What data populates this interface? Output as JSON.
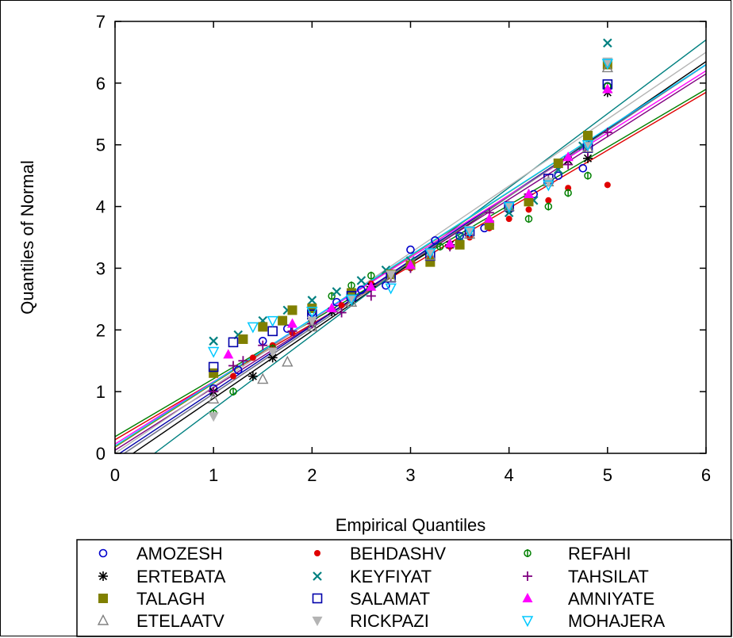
{
  "chart_data": {
    "type": "scatter",
    "xlabel": "Empirical Quantiles",
    "ylabel": "Quantiles of Normal",
    "xlim": [
      0,
      6
    ],
    "ylim": [
      0,
      7
    ],
    "xticks": [
      "0",
      "1",
      "2",
      "3",
      "4",
      "5",
      "6"
    ],
    "yticks": [
      "0",
      "1",
      "2",
      "3",
      "4",
      "5",
      "6",
      "7"
    ],
    "legend_position": "bottom",
    "series": [
      {
        "name": "AMOZESH",
        "color": "#0000cc",
        "marker": "circle-open",
        "points": [
          [
            1.0,
            1.05
          ],
          [
            1.25,
            1.35
          ],
          [
            1.5,
            1.82
          ],
          [
            1.75,
            2.02
          ],
          [
            2.0,
            2.28
          ],
          [
            2.25,
            2.45
          ],
          [
            2.5,
            2.65
          ],
          [
            2.75,
            2.72
          ],
          [
            3.0,
            3.3
          ],
          [
            3.25,
            3.45
          ],
          [
            3.5,
            3.52
          ],
          [
            3.75,
            3.65
          ],
          [
            4.0,
            3.95
          ],
          [
            4.25,
            4.2
          ],
          [
            4.5,
            4.5
          ],
          [
            4.75,
            4.62
          ],
          [
            5.0,
            5.95
          ]
        ],
        "fit": [
          [
            0,
            -0.1
          ],
          [
            6,
            6.3
          ]
        ]
      },
      {
        "name": "BEHDASHV",
        "color": "#e00000",
        "marker": "dot",
        "points": [
          [
            1.2,
            1.25
          ],
          [
            1.4,
            1.55
          ],
          [
            1.6,
            1.75
          ],
          [
            1.8,
            1.95
          ],
          [
            2.0,
            2.15
          ],
          [
            2.3,
            2.4
          ],
          [
            2.6,
            2.75
          ],
          [
            3.0,
            3.0
          ],
          [
            3.2,
            3.2
          ],
          [
            3.4,
            3.35
          ],
          [
            3.6,
            3.5
          ],
          [
            3.8,
            3.65
          ],
          [
            4.0,
            3.8
          ],
          [
            4.2,
            3.95
          ],
          [
            4.4,
            4.1
          ],
          [
            4.6,
            4.3
          ],
          [
            5.0,
            4.35
          ]
        ],
        "fit": [
          [
            0,
            0.22
          ],
          [
            6,
            5.85
          ]
        ]
      },
      {
        "name": "REFAHI",
        "color": "#008000",
        "marker": "circle-bar",
        "points": [
          [
            1.0,
            0.65
          ],
          [
            1.2,
            1.0
          ],
          [
            1.6,
            1.7
          ],
          [
            2.2,
            2.55
          ],
          [
            2.4,
            2.72
          ],
          [
            2.6,
            2.88
          ],
          [
            3.0,
            3.05
          ],
          [
            3.3,
            3.35
          ],
          [
            3.6,
            3.62
          ],
          [
            4.0,
            3.95
          ],
          [
            4.2,
            3.8
          ],
          [
            4.4,
            4.0
          ],
          [
            4.6,
            4.22
          ],
          [
            4.8,
            4.5
          ],
          [
            5.0,
            5.95
          ]
        ],
        "fit": [
          [
            0,
            0.27
          ],
          [
            6,
            5.9
          ]
        ]
      },
      {
        "name": "ERTEBATA",
        "color": "#000000",
        "marker": "asterisk",
        "points": [
          [
            1.0,
            1.0
          ],
          [
            1.4,
            1.25
          ],
          [
            1.6,
            1.55
          ],
          [
            2.0,
            2.1
          ],
          [
            2.2,
            2.3
          ],
          [
            2.6,
            2.7
          ],
          [
            3.0,
            3.05
          ],
          [
            3.4,
            3.38
          ],
          [
            3.8,
            3.7
          ],
          [
            4.2,
            4.15
          ],
          [
            4.6,
            4.75
          ],
          [
            4.8,
            4.78
          ],
          [
            5.0,
            5.85
          ]
        ],
        "fit": [
          [
            0,
            -0.2
          ],
          [
            6,
            6.35
          ]
        ]
      },
      {
        "name": "KEYFIYAT",
        "color": "#008080",
        "marker": "cross",
        "points": [
          [
            1.0,
            1.82
          ],
          [
            1.25,
            1.92
          ],
          [
            1.5,
            2.15
          ],
          [
            1.75,
            2.32
          ],
          [
            2.0,
            2.48
          ],
          [
            2.25,
            2.62
          ],
          [
            2.5,
            2.8
          ],
          [
            2.75,
            2.97
          ],
          [
            3.0,
            3.12
          ],
          [
            3.5,
            3.5
          ],
          [
            4.0,
            3.9
          ],
          [
            4.25,
            4.1
          ],
          [
            4.5,
            4.6
          ],
          [
            4.75,
            4.98
          ],
          [
            5.0,
            6.65
          ]
        ],
        "fit": [
          [
            0.4,
            0
          ],
          [
            6,
            6.7
          ]
        ]
      },
      {
        "name": "TAHSILAT",
        "color": "#800080",
        "marker": "plus",
        "points": [
          [
            1.0,
            1.0
          ],
          [
            1.2,
            1.42
          ],
          [
            1.3,
            1.5
          ],
          [
            1.5,
            1.75
          ],
          [
            1.8,
            1.98
          ],
          [
            2.0,
            2.1
          ],
          [
            2.3,
            2.28
          ],
          [
            2.6,
            2.55
          ],
          [
            2.8,
            2.85
          ],
          [
            3.0,
            3.0
          ],
          [
            3.4,
            3.35
          ],
          [
            3.8,
            3.9
          ],
          [
            4.2,
            4.2
          ],
          [
            4.4,
            4.45
          ],
          [
            4.6,
            4.68
          ],
          [
            4.8,
            4.88
          ],
          [
            5.0,
            5.2
          ]
        ],
        "fit": [
          [
            0,
            0.05
          ],
          [
            6,
            6.15
          ]
        ]
      },
      {
        "name": "TALAGH",
        "color": "#808000",
        "marker": "square-filled",
        "points": [
          [
            1.0,
            1.3
          ],
          [
            1.3,
            1.85
          ],
          [
            1.5,
            2.05
          ],
          [
            1.7,
            2.15
          ],
          [
            1.8,
            2.32
          ],
          [
            2.0,
            2.35
          ],
          [
            2.4,
            2.6
          ],
          [
            2.8,
            2.9
          ],
          [
            3.0,
            3.05
          ],
          [
            3.2,
            3.1
          ],
          [
            3.5,
            3.38
          ],
          [
            3.8,
            3.7
          ],
          [
            4.2,
            4.08
          ],
          [
            4.5,
            4.7
          ],
          [
            4.8,
            5.15
          ],
          [
            5.0,
            6.3
          ]
        ],
        "fit": [
          [
            0,
            0.1
          ],
          [
            6,
            6.3
          ]
        ]
      },
      {
        "name": "SALAMAT",
        "color": "#0000aa",
        "marker": "square-open",
        "points": [
          [
            1.0,
            1.4
          ],
          [
            1.2,
            1.8
          ],
          [
            1.6,
            1.98
          ],
          [
            2.0,
            2.25
          ],
          [
            2.4,
            2.55
          ],
          [
            2.8,
            2.85
          ],
          [
            3.2,
            3.2
          ],
          [
            3.6,
            3.6
          ],
          [
            4.0,
            4.0
          ],
          [
            4.4,
            4.45
          ],
          [
            4.8,
            4.95
          ],
          [
            5.0,
            5.98
          ]
        ],
        "fit": [
          [
            0,
            -0.05
          ],
          [
            6,
            6.3
          ]
        ]
      },
      {
        "name": "AMNIYATE",
        "color": "#ff00ff",
        "marker": "triangle-filled",
        "points": [
          [
            1.15,
            1.6
          ],
          [
            1.8,
            2.1
          ],
          [
            2.2,
            2.35
          ],
          [
            2.6,
            2.7
          ],
          [
            3.0,
            3.05
          ],
          [
            3.4,
            3.4
          ],
          [
            3.8,
            3.8
          ],
          [
            4.2,
            4.2
          ],
          [
            4.6,
            4.8
          ],
          [
            5.0,
            5.9
          ]
        ],
        "fit": [
          [
            0,
            0.15
          ],
          [
            6,
            6.2
          ]
        ]
      },
      {
        "name": "ETELAATV",
        "color": "#808080",
        "marker": "triangle-open",
        "points": [
          [
            1.0,
            0.88
          ],
          [
            1.5,
            1.2
          ],
          [
            1.75,
            1.48
          ],
          [
            2.0,
            2.05
          ],
          [
            2.4,
            2.45
          ],
          [
            2.8,
            2.85
          ],
          [
            3.2,
            3.2
          ],
          [
            3.6,
            3.55
          ],
          [
            4.0,
            4.0
          ],
          [
            4.4,
            4.4
          ],
          [
            4.8,
            4.95
          ],
          [
            5.0,
            6.25
          ]
        ],
        "fit": [
          [
            0,
            -0.1
          ],
          [
            6,
            6.3
          ]
        ]
      },
      {
        "name": "RICKPAZI",
        "color": "#b4b4b4",
        "marker": "triangle-down-filled",
        "points": [
          [
            1.0,
            0.6
          ],
          [
            1.6,
            1.65
          ],
          [
            2.0,
            2.15
          ],
          [
            2.4,
            2.5
          ],
          [
            2.8,
            2.9
          ],
          [
            3.2,
            3.25
          ],
          [
            3.6,
            3.62
          ],
          [
            4.0,
            4.0
          ],
          [
            4.4,
            4.4
          ],
          [
            4.8,
            4.98
          ],
          [
            5.0,
            6.35
          ]
        ],
        "fit": [
          [
            0,
            0.0
          ],
          [
            6,
            6.5
          ]
        ]
      },
      {
        "name": "MOHAJERA",
        "color": "#00c8ff",
        "marker": "triangle-down-open",
        "points": [
          [
            1.0,
            1.65
          ],
          [
            1.4,
            2.05
          ],
          [
            1.6,
            2.15
          ],
          [
            2.0,
            2.3
          ],
          [
            2.4,
            2.5
          ],
          [
            2.8,
            2.68
          ],
          [
            3.2,
            3.25
          ],
          [
            3.6,
            3.6
          ],
          [
            4.0,
            4.0
          ],
          [
            4.4,
            4.35
          ],
          [
            4.8,
            5.0
          ],
          [
            5.0,
            6.32
          ]
        ],
        "fit": [
          [
            0,
            0.12
          ],
          [
            6,
            6.3
          ]
        ]
      }
    ]
  }
}
